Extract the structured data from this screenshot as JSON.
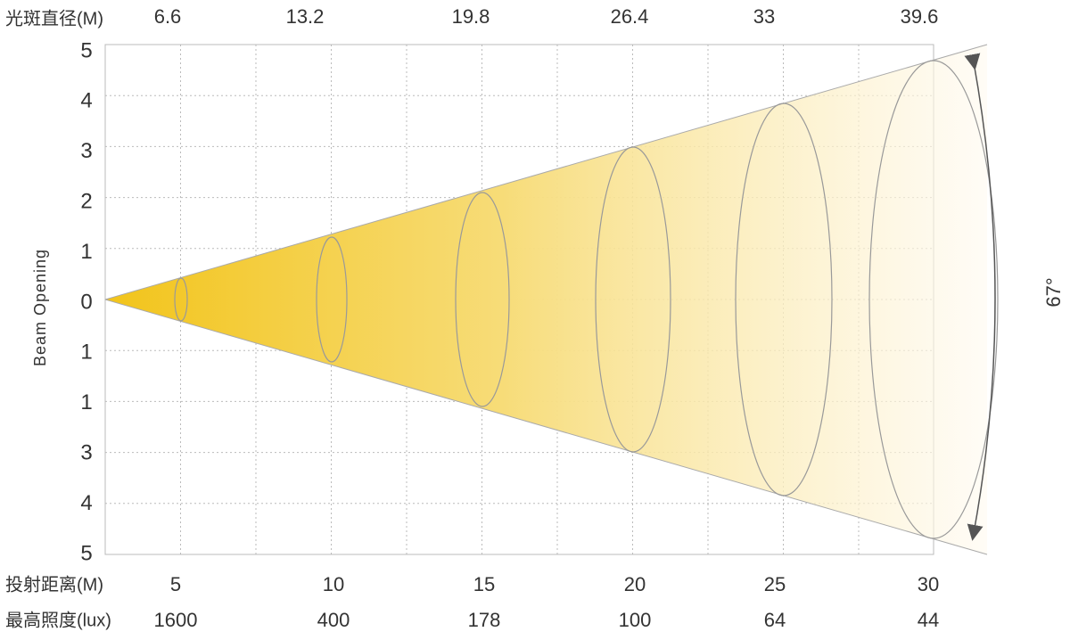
{
  "axis_title": "Beam Opening",
  "y_labels": [
    5,
    4,
    3,
    2,
    1,
    0,
    1,
    1,
    3,
    4,
    5
  ],
  "top": {
    "title": "光斑直径(M)",
    "values": [
      6.6,
      13.2,
      19.8,
      26.4,
      33,
      39.6
    ]
  },
  "distance": {
    "title": "投射距离(M)",
    "values": [
      5,
      10,
      15,
      20,
      25,
      30
    ]
  },
  "lux": {
    "title": "最高照度(lux)",
    "values": [
      1600,
      400,
      178,
      100,
      64,
      44
    ]
  },
  "angle": "67°"
}
